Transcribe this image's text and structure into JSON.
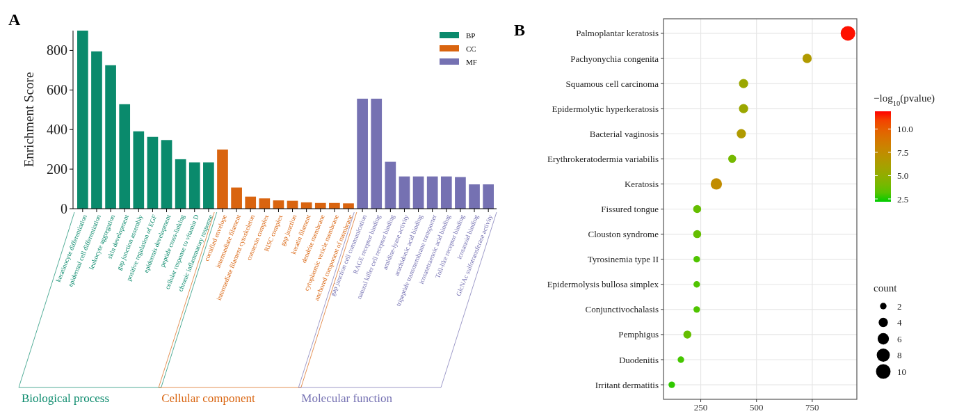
{
  "chart_data": [
    {
      "type": "bar",
      "title": "A",
      "ylabel": "Enrichment Score",
      "categories": [
        "keratinocyte differentiation",
        "epidermal cell differentiation",
        "leukocyte aggregation",
        "skin development",
        "gap junction assembly",
        "positive regulation of EGF",
        "epidermis development",
        "peptide cross-linking",
        "cellular response to vitamin D",
        "chronic inflammatory response",
        "cornified envelope",
        "intermediate filament",
        "intermediate filament cytoskeleton",
        "connexin complex",
        "RISC complex",
        "gap junction",
        "keratin filament",
        "dendrite membrane",
        "cytoplasmic vesicle membrane",
        "anchored component of membrane",
        "gap junction cell communication",
        "RAGE receptor binding",
        "natural killer cell receptor binding",
        "amidine-lyase activity",
        "arachidonic acid binding",
        "tripeptide transmembrane transporter",
        "icosatetraenoic acid binding",
        "Toll-like receptor binding",
        "icosanoid binding",
        "GlcNAc sulfotransferase activity"
      ],
      "series": [
        {
          "name": "BP",
          "color": "#0a8a6c",
          "values": [
            900,
            795,
            725,
            528,
            391,
            363,
            347,
            250,
            234,
            234,
            null,
            null,
            null,
            null,
            null,
            null,
            null,
            null,
            null,
            null,
            null,
            null,
            null,
            null,
            null,
            null,
            null,
            null,
            null,
            null
          ]
        },
        {
          "name": "CC",
          "color": "#d9640f",
          "values": [
            null,
            null,
            null,
            null,
            null,
            null,
            null,
            null,
            null,
            null,
            299,
            107,
            61,
            52,
            42,
            40,
            32,
            29,
            29,
            27,
            null,
            null,
            null,
            null,
            null,
            null,
            null,
            null,
            null,
            null
          ]
        },
        {
          "name": "MF",
          "color": "#7571b2",
          "values": [
            null,
            null,
            null,
            null,
            null,
            null,
            null,
            null,
            null,
            null,
            null,
            null,
            null,
            null,
            null,
            null,
            null,
            null,
            null,
            null,
            556,
            556,
            237,
            163,
            163,
            163,
            163,
            160,
            123,
            123
          ]
        }
      ],
      "annotations": [
        "Biological process",
        "Cellular component",
        "Molecular function"
      ],
      "ylim": [
        0,
        900
      ],
      "yticks": [
        0,
        200,
        400,
        600,
        800
      ],
      "legend": "top right"
    },
    {
      "type": "bubble",
      "title": "B",
      "categories": [
        "Palmoplantar keratosis",
        "Pachyonychia congenita",
        "Squamous cell carcinoma",
        "Epidermolytic hyperkeratosis",
        "Bacterial vaginosis",
        "Erythrokeratodermia variabilis",
        "Keratosis",
        "Fissured tongue",
        "Clouston syndrome",
        "Tyrosinemia type II",
        "Epidermolysis bullosa simplex",
        "Conjunctivochalasis",
        "Pemphigus",
        "Duodenitis",
        "Irritant dermatitis"
      ],
      "orientation": "horizontal",
      "values": [
        910,
        727,
        442,
        442,
        432,
        391,
        320,
        234,
        234,
        232,
        232,
        232,
        190,
        161,
        120
      ],
      "sizes": [
        10,
        4,
        4,
        4,
        4,
        3,
        6,
        3,
        3,
        2,
        2,
        2,
        3,
        2,
        2
      ],
      "size_legend": [
        2,
        4,
        6,
        8,
        10
      ],
      "cvalues": [
        11.8,
        6.5,
        5.5,
        5.5,
        6.5,
        4,
        7.5,
        3.5,
        3.5,
        3,
        3,
        3,
        3.5,
        2.8,
        2.5
      ],
      "clim": [
        2.2,
        11.9
      ],
      "cticks": [
        {
          "value": 2.5,
          "label": "2.5"
        },
        {
          "value": 5,
          "label": "5.0"
        },
        {
          "value": 7.5,
          "label": "7.5"
        },
        {
          "value": 10,
          "label": "10.0"
        }
      ],
      "clabel": "−log$_{10}$(pvalue)",
      "legend_title": "count",
      "xlim": [
        83,
        950
      ],
      "xticks": [
        250,
        500,
        750
      ],
      "grid": true
    }
  ]
}
